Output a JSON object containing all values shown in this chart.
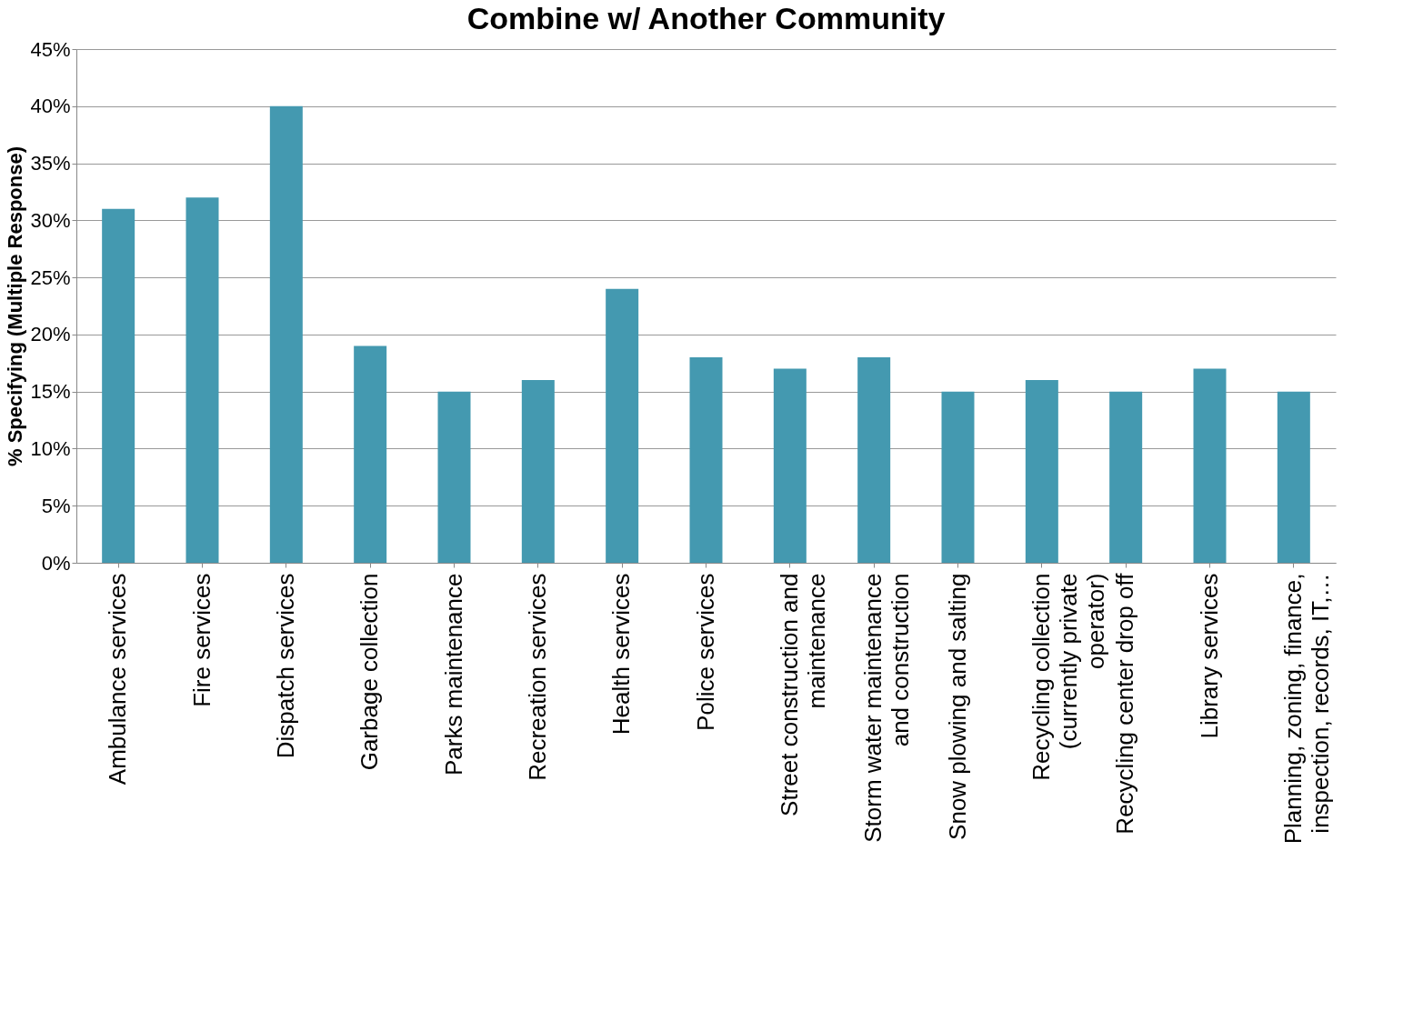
{
  "chart_data": {
    "type": "bar",
    "title": "Combine w/ Another  Community",
    "ylabel": "% Specifying (Multiple Response)",
    "categories": [
      "Ambulance services",
      "Fire services",
      "Dispatch services",
      "Garbage collection",
      "Parks maintenance",
      "Recreation services",
      "Health services",
      "Police services",
      "Street construction and maintenance",
      "Storm water maintenance and construction",
      "Snow plowing and salting",
      "Recycling collection (currently private operator)",
      "Recycling center drop off",
      "Library services",
      "Planning, zoning, finance, inspection, records, IT,…"
    ],
    "values": [
      31,
      32,
      40,
      19,
      15,
      16,
      24,
      18,
      17,
      18,
      15,
      16,
      15,
      17,
      15
    ],
    "color": "#4499b0",
    "ylim": [
      0,
      45
    ],
    "yticks": [
      {
        "value": 0,
        "label": "0%"
      },
      {
        "value": 5,
        "label": "5%"
      },
      {
        "value": 10,
        "label": "10%"
      },
      {
        "value": 15,
        "label": "15%"
      },
      {
        "value": 20,
        "label": "20%"
      },
      {
        "value": 25,
        "label": "25%"
      },
      {
        "value": 30,
        "label": "30%"
      },
      {
        "value": 35,
        "label": "35%"
      },
      {
        "value": 40,
        "label": "40%"
      },
      {
        "value": 45,
        "label": "45%"
      }
    ],
    "grid": "y"
  }
}
